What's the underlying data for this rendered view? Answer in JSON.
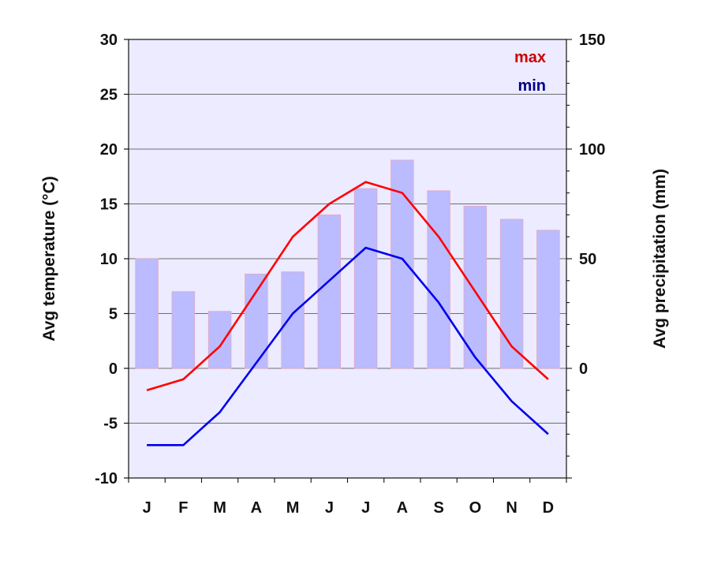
{
  "chart_data": {
    "type": "bar",
    "combo": "bar + line, dual y-axis",
    "categories": [
      "J",
      "F",
      "M",
      "A",
      "M",
      "J",
      "J",
      "A",
      "S",
      "O",
      "N",
      "D"
    ],
    "y_left": {
      "label": "Avg temperature (°C)",
      "lim": [
        -10,
        30
      ],
      "ticks": [
        -10,
        -5,
        0,
        5,
        10,
        15,
        20,
        25,
        30
      ]
    },
    "y_right": {
      "label": "Avg precipitation (mm)",
      "lim": [
        -50,
        150
      ],
      "ticks": [
        0,
        50,
        100,
        150
      ]
    },
    "series": [
      {
        "name": "max",
        "type": "line",
        "axis": "left",
        "color": "#ff0000",
        "values": [
          -2,
          -1,
          2,
          7,
          12,
          15,
          17,
          16,
          12,
          7,
          2,
          -1
        ]
      },
      {
        "name": "min",
        "type": "line",
        "axis": "left",
        "color": "#0000ee",
        "values": [
          -7,
          -7,
          -4,
          0.5,
          5,
          8,
          11,
          10,
          6,
          1,
          -3,
          -6
        ]
      },
      {
        "type": "bar",
        "axis": "right",
        "color": "#bbbbff",
        "values": [
          50,
          35,
          26,
          43,
          44,
          70,
          82,
          95,
          81,
          74,
          68,
          63
        ]
      }
    ],
    "legend": {
      "position": "top-right",
      "items": [
        "max",
        "min"
      ]
    },
    "grid": {
      "horizontal": true
    },
    "plot_background": "#ecebff"
  }
}
